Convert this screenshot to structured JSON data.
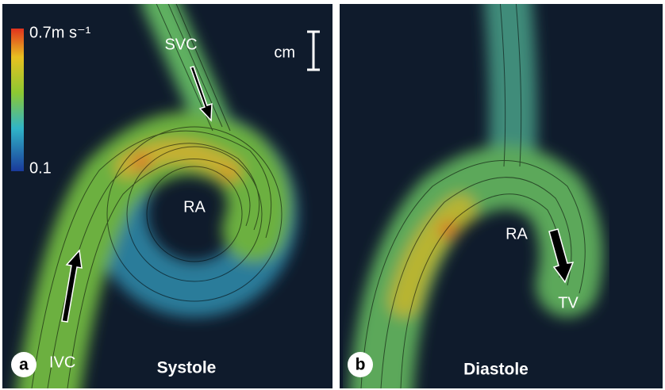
{
  "panel_a": {
    "letter": "a",
    "title": "Systole",
    "colorbar_max": "0.7m s⁻¹",
    "colorbar_min": "0.1",
    "labels": [
      "SVC",
      "RA",
      "IVC"
    ],
    "scale": "cm"
  },
  "panel_b": {
    "letter": "b",
    "title": "Diastole",
    "labels": [
      "RA",
      "TV"
    ]
  }
}
